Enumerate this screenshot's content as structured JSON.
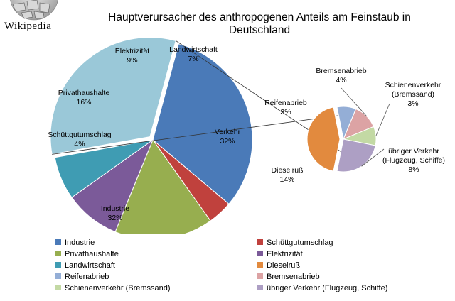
{
  "branding": {
    "logo_text": "Wikipedia"
  },
  "chart_data": {
    "type": "pie",
    "title": "Hauptverursacher des anthropogenen Anteils am Feinstaub in Deutschland",
    "main_pie": {
      "slices": [
        {
          "label": "Industrie",
          "value": 32,
          "display": "32%",
          "color": "#4a7ab8"
        },
        {
          "label": "Schüttgutumschlag",
          "value": 4,
          "display": "4%",
          "color": "#c0413d"
        },
        {
          "label": "Privathaushalte",
          "value": 16,
          "display": "16%",
          "color": "#97ae4f"
        },
        {
          "label": "Elektrizität",
          "value": 9,
          "display": "9%",
          "color": "#7b5a99"
        },
        {
          "label": "Landwirtschaft",
          "value": 7,
          "display": "7%",
          "color": "#3f9cb3"
        },
        {
          "label": "Verkehr",
          "value": 32,
          "display": "32%",
          "color": "#9ac8d8"
        }
      ],
      "exploded_slice": "Verkehr"
    },
    "sub_pie": {
      "parent": "Verkehr",
      "slices": [
        {
          "label": "Dieselruß",
          "value": 14,
          "display": "14%",
          "color": "#e28a3e"
        },
        {
          "label": "Reifenabrieb",
          "value": 3,
          "display": "3%",
          "color": "#94aed6"
        },
        {
          "label": "Bremsenabrieb",
          "value": 4,
          "display": "4%",
          "color": "#dca3a4"
        },
        {
          "label": "Schienenverkehr (Bremssand)",
          "value": 3,
          "display": "3%",
          "color": "#c3d9a4"
        },
        {
          "label": "übriger Verkehr (Flugzeug, Schiffe)",
          "value": 8,
          "display": "8%",
          "color": "#ad9fc4"
        }
      ],
      "exploded_slice": "Dieselruß"
    },
    "legend": {
      "placement": "bottom",
      "columns": 2,
      "items": [
        {
          "label": "Industrie",
          "color": "#4a7ab8"
        },
        {
          "label": "Schüttgutumschlag",
          "color": "#c0413d"
        },
        {
          "label": "Privathaushalte",
          "color": "#97ae4f"
        },
        {
          "label": "Elektrizität",
          "color": "#7b5a99"
        },
        {
          "label": "Landwirtschaft",
          "color": "#3f9cb3"
        },
        {
          "label": "Dieselruß",
          "color": "#e28a3e"
        },
        {
          "label": "Reifenabrieb",
          "color": "#94aed6"
        },
        {
          "label": "Bremsenabrieb",
          "color": "#dca3a4"
        },
        {
          "label": "Schienenverkehr (Bremssand)",
          "color": "#c3d9a4"
        },
        {
          "label": "übriger Verkehr (Flugzeug, Schiffe)",
          "color": "#ad9fc4"
        }
      ]
    }
  }
}
